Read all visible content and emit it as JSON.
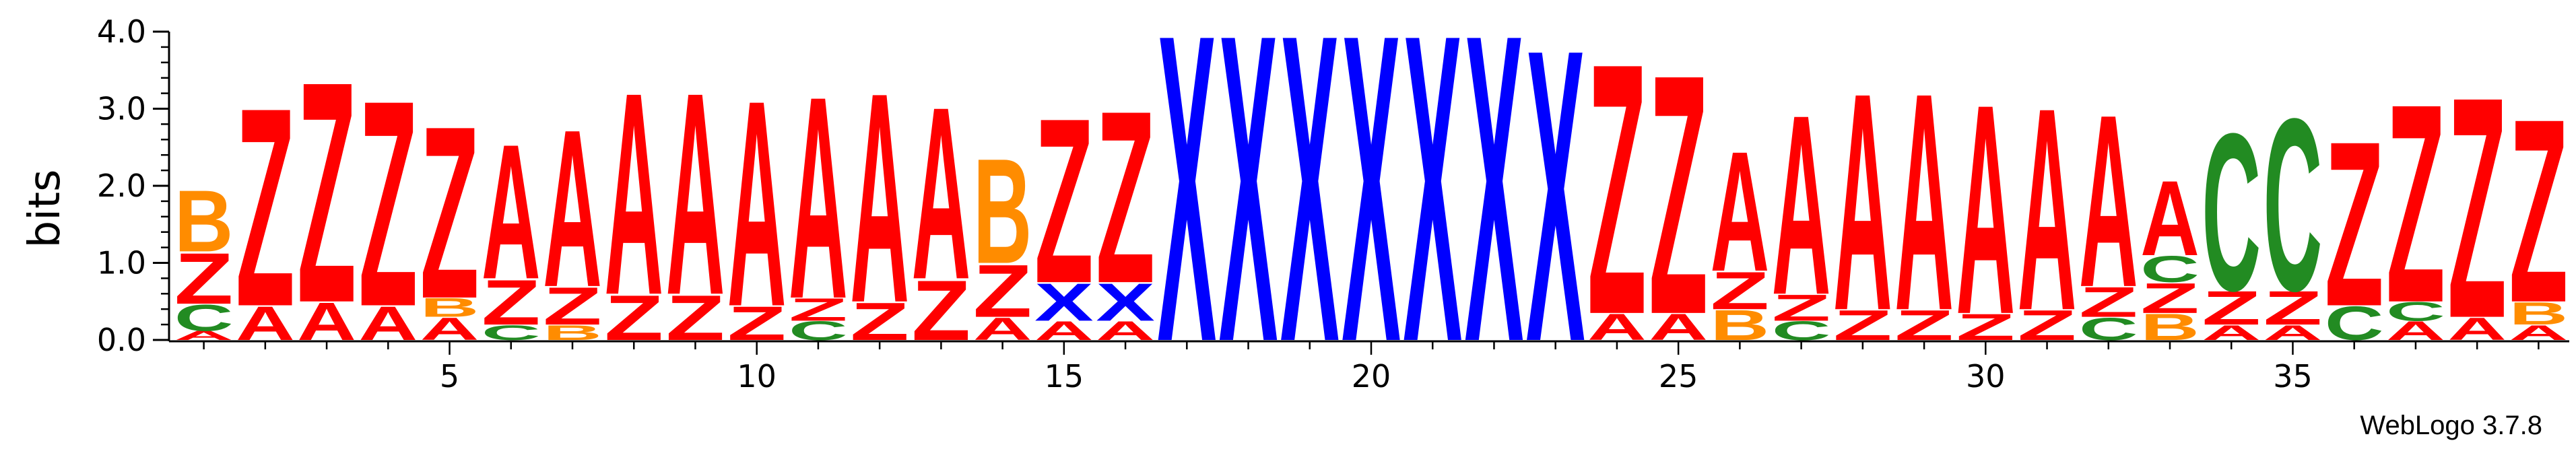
{
  "chart_data": {
    "type": "sequence-logo",
    "ylabel": "bits",
    "ylim": [
      0,
      4.0
    ],
    "yticks": [
      "0.0",
      "1.0",
      "2.0",
      "3.0",
      "4.0"
    ],
    "xticks": [
      "5",
      "10",
      "15",
      "20",
      "25",
      "30",
      "35"
    ],
    "xtick_positions": [
      5,
      10,
      15,
      20,
      25,
      30,
      35
    ],
    "positions": 39,
    "credit": "WebLogo 3.7.8",
    "colors": {
      "A": "#ff0000",
      "Z": "#ff0000",
      "X": "#0000ff",
      "B": "#ff8c00",
      "C": "#228b22"
    },
    "columns": [
      {
        "pos": 1,
        "stack": [
          [
            "A",
            0.12
          ],
          [
            "C",
            0.35
          ],
          [
            "Z",
            0.68
          ],
          [
            "B",
            0.82
          ]
        ]
      },
      {
        "pos": 2,
        "stack": [
          [
            "A",
            0.45
          ],
          [
            "Z",
            2.65
          ]
        ]
      },
      {
        "pos": 3,
        "stack": [
          [
            "A",
            0.5
          ],
          [
            "Z",
            2.95
          ]
        ]
      },
      {
        "pos": 4,
        "stack": [
          [
            "A",
            0.45
          ],
          [
            "Z",
            2.75
          ]
        ]
      },
      {
        "pos": 5,
        "stack": [
          [
            "A",
            0.3
          ],
          [
            "B",
            0.25
          ],
          [
            "Z",
            2.3
          ]
        ]
      },
      {
        "pos": 6,
        "stack": [
          [
            "C",
            0.2
          ],
          [
            "Z",
            0.6
          ],
          [
            "A",
            1.8
          ]
        ]
      },
      {
        "pos": 7,
        "stack": [
          [
            "B",
            0.2
          ],
          [
            "Z",
            0.5
          ],
          [
            "A",
            2.1
          ]
        ]
      },
      {
        "pos": 8,
        "stack": [
          [
            "Z",
            0.6
          ],
          [
            "A",
            2.7
          ]
        ]
      },
      {
        "pos": 9,
        "stack": [
          [
            "Z",
            0.6
          ],
          [
            "A",
            2.7
          ]
        ]
      },
      {
        "pos": 10,
        "stack": [
          [
            "Z",
            0.45
          ],
          [
            "A",
            2.75
          ]
        ]
      },
      {
        "pos": 11,
        "stack": [
          [
            "C",
            0.25
          ],
          [
            "Z",
            0.3
          ],
          [
            "A",
            2.7
          ]
        ]
      },
      {
        "pos": 12,
        "stack": [
          [
            "Z",
            0.5
          ],
          [
            "A",
            2.8
          ]
        ]
      },
      {
        "pos": 13,
        "stack": [
          [
            "Z",
            0.8
          ],
          [
            "A",
            2.3
          ]
        ]
      },
      {
        "pos": 14,
        "stack": [
          [
            "A",
            0.3
          ],
          [
            "Z",
            0.7
          ],
          [
            "B",
            1.4
          ]
        ]
      },
      {
        "pos": 15,
        "stack": [
          [
            "A",
            0.25
          ],
          [
            "X",
            0.5
          ],
          [
            "Z",
            2.2
          ]
        ]
      },
      {
        "pos": 16,
        "stack": [
          [
            "A",
            0.25
          ],
          [
            "X",
            0.5
          ],
          [
            "Z",
            2.3
          ]
        ]
      },
      {
        "pos": 17,
        "stack": [
          [
            "X",
            4.1
          ]
        ]
      },
      {
        "pos": 18,
        "stack": [
          [
            "X",
            4.1
          ]
        ]
      },
      {
        "pos": 19,
        "stack": [
          [
            "X",
            4.1
          ]
        ]
      },
      {
        "pos": 20,
        "stack": [
          [
            "X",
            4.1
          ]
        ]
      },
      {
        "pos": 21,
        "stack": [
          [
            "X",
            4.1
          ]
        ]
      },
      {
        "pos": 22,
        "stack": [
          [
            "X",
            4.1
          ]
        ]
      },
      {
        "pos": 23,
        "stack": [
          [
            "X",
            3.9
          ]
        ]
      },
      {
        "pos": 24,
        "stack": [
          [
            "A",
            0.35
          ],
          [
            "Z",
            3.35
          ]
        ]
      },
      {
        "pos": 25,
        "stack": [
          [
            "A",
            0.35
          ],
          [
            "Z",
            3.2
          ]
        ]
      },
      {
        "pos": 26,
        "stack": [
          [
            "B",
            0.4
          ],
          [
            "Z",
            0.5
          ],
          [
            "A",
            1.6
          ]
        ]
      },
      {
        "pos": 27,
        "stack": [
          [
            "C",
            0.25
          ],
          [
            "Z",
            0.35
          ],
          [
            "A",
            2.4
          ]
        ]
      },
      {
        "pos": 28,
        "stack": [
          [
            "Z",
            0.4
          ],
          [
            "A",
            2.9
          ]
        ]
      },
      {
        "pos": 29,
        "stack": [
          [
            "Z",
            0.4
          ],
          [
            "A",
            2.9
          ]
        ]
      },
      {
        "pos": 30,
        "stack": [
          [
            "Z",
            0.35
          ],
          [
            "A",
            2.8
          ]
        ]
      },
      {
        "pos": 31,
        "stack": [
          [
            "Z",
            0.4
          ],
          [
            "A",
            2.7
          ]
        ]
      },
      {
        "pos": 32,
        "stack": [
          [
            "C",
            0.3
          ],
          [
            "Z",
            0.4
          ],
          [
            "A",
            2.3
          ]
        ]
      },
      {
        "pos": 33,
        "stack": [
          [
            "B",
            0.35
          ],
          [
            "Z",
            0.4
          ],
          [
            "C",
            0.35
          ],
          [
            "A",
            1.0
          ]
        ]
      },
      {
        "pos": 34,
        "stack": [
          [
            "A",
            0.2
          ],
          [
            "Z",
            0.45
          ],
          [
            "C",
            2.1
          ]
        ]
      },
      {
        "pos": 35,
        "stack": [
          [
            "A",
            0.2
          ],
          [
            "Z",
            0.45
          ],
          [
            "C",
            2.3
          ]
        ]
      },
      {
        "pos": 36,
        "stack": [
          [
            "C",
            0.45
          ],
          [
            "Z",
            2.2
          ]
        ]
      },
      {
        "pos": 37,
        "stack": [
          [
            "A",
            0.25
          ],
          [
            "C",
            0.25
          ],
          [
            "Z",
            2.65
          ]
        ]
      },
      {
        "pos": 38,
        "stack": [
          [
            "A",
            0.3
          ],
          [
            "Z",
            2.95
          ]
        ]
      },
      {
        "pos": 39,
        "stack": [
          [
            "A",
            0.2
          ],
          [
            "B",
            0.3
          ],
          [
            "Z",
            2.45
          ]
        ]
      }
    ]
  }
}
